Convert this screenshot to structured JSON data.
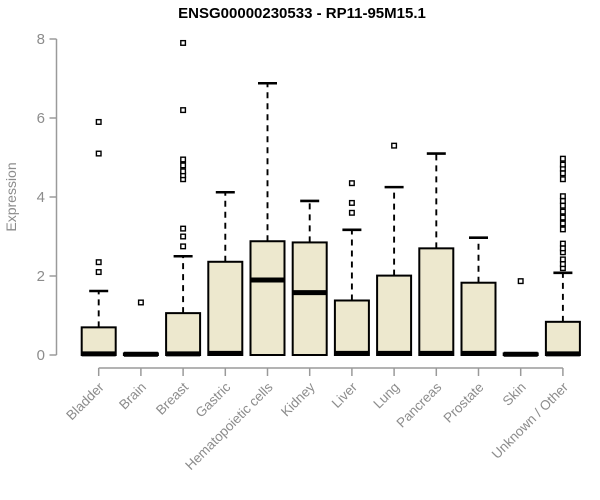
{
  "chart_data": {
    "type": "boxplot",
    "title": "ENSG00000230533 - RP11-95M15.1",
    "ylabel": "Expression",
    "xlabel": "",
    "ylim": [
      0,
      8
    ],
    "yticks": [
      0,
      2,
      4,
      6,
      8
    ],
    "grid": false,
    "legend_position": "none",
    "colors": {
      "box_fill": "#EDE8CE",
      "box_stroke": "#000000",
      "median": "#000000",
      "whisker": "#000000",
      "outlier_stroke": "#000000",
      "outlier_fill": "#ffffff",
      "axis": "#9a9a9a",
      "tick_text": "#8c8c8c",
      "title_text": "#000000"
    },
    "categories": [
      "Bladder",
      "Brain",
      "Breast",
      "Gastric",
      "Hematopoietic cells",
      "Kidney",
      "Liver",
      "Lung",
      "Pancreas",
      "Prostate",
      "Skin",
      "Unknown / Other"
    ],
    "series": [
      {
        "name": "Bladder",
        "whisker_low": 0,
        "q1": 0,
        "median": 0.03,
        "q3": 0.7,
        "whisker_high": 1.62,
        "outliers": [
          2.1,
          2.35,
          5.1,
          5.9
        ]
      },
      {
        "name": "Brain",
        "whisker_low": 0,
        "q1": 0,
        "median": 0.02,
        "q3": 0.04,
        "whisker_high": 0.04,
        "outliers": [
          1.33
        ]
      },
      {
        "name": "Breast",
        "whisker_low": 0,
        "q1": 0,
        "median": 0.03,
        "q3": 1.06,
        "whisker_high": 2.5,
        "outliers": [
          2.75,
          3.0,
          3.2,
          4.45,
          4.55,
          4.65,
          4.8,
          4.95,
          6.2,
          7.9
        ]
      },
      {
        "name": "Gastric",
        "whisker_low": 0,
        "q1": 0,
        "median": 0.04,
        "q3": 2.36,
        "whisker_high": 4.12,
        "outliers": []
      },
      {
        "name": "Hematopoietic cells",
        "whisker_low": 0,
        "q1": 0,
        "median": 1.9,
        "q3": 2.88,
        "whisker_high": 6.88,
        "outliers": []
      },
      {
        "name": "Kidney",
        "whisker_low": 0,
        "q1": 0,
        "median": 1.58,
        "q3": 2.85,
        "whisker_high": 3.9,
        "outliers": []
      },
      {
        "name": "Liver",
        "whisker_low": 0,
        "q1": 0,
        "median": 0.04,
        "q3": 1.38,
        "whisker_high": 3.17,
        "outliers": [
          3.6,
          3.85,
          4.35
        ]
      },
      {
        "name": "Lung",
        "whisker_low": 0,
        "q1": 0,
        "median": 0.04,
        "q3": 2.01,
        "whisker_high": 4.25,
        "outliers": [
          5.3
        ]
      },
      {
        "name": "Pancreas",
        "whisker_low": 0,
        "q1": 0,
        "median": 0.04,
        "q3": 2.7,
        "whisker_high": 5.1,
        "outliers": []
      },
      {
        "name": "Prostate",
        "whisker_low": 0,
        "q1": 0,
        "median": 0.04,
        "q3": 1.83,
        "whisker_high": 2.97,
        "outliers": []
      },
      {
        "name": "Skin",
        "whisker_low": 0,
        "q1": 0,
        "median": 0.02,
        "q3": 0.04,
        "whisker_high": 0.04,
        "outliers": [
          1.87
        ]
      },
      {
        "name": "Unknown / Other",
        "whisker_low": 0,
        "q1": 0,
        "median": 0.03,
        "q3": 0.84,
        "whisker_high": 2.08,
        "outliers": [
          2.2,
          2.3,
          2.42,
          2.6,
          2.7,
          2.82,
          3.18,
          3.33,
          3.48,
          3.63,
          3.78,
          3.9,
          4.02,
          4.45,
          4.6,
          4.72,
          4.82,
          4.97
        ]
      }
    ]
  }
}
